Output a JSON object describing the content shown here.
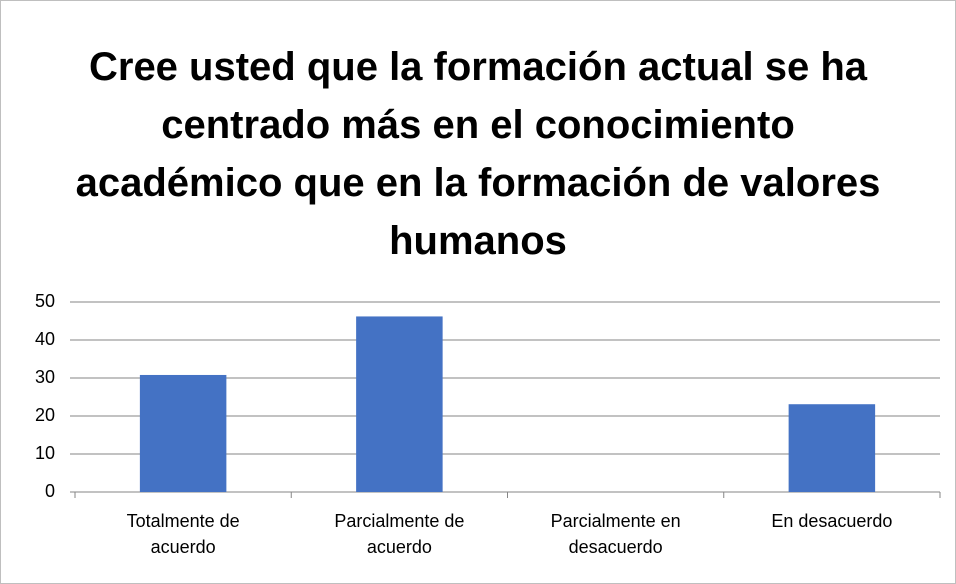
{
  "chart_data": {
    "type": "bar",
    "title": "Cree usted que la formación actual se ha centrado más en el conocimiento académico que en la formación de valores humanos",
    "categories": [
      "Totalmente de acuerdo",
      "Parcialmente de acuerdo",
      "Parcialmente en desacuerdo",
      "En desacuerdo"
    ],
    "values": [
      30.8,
      46.2,
      0,
      23.1
    ],
    "color": "#4472c4",
    "ylim": [
      0,
      50
    ],
    "yticks": [
      0,
      10,
      20,
      30,
      40,
      50
    ],
    "grid": true
  }
}
